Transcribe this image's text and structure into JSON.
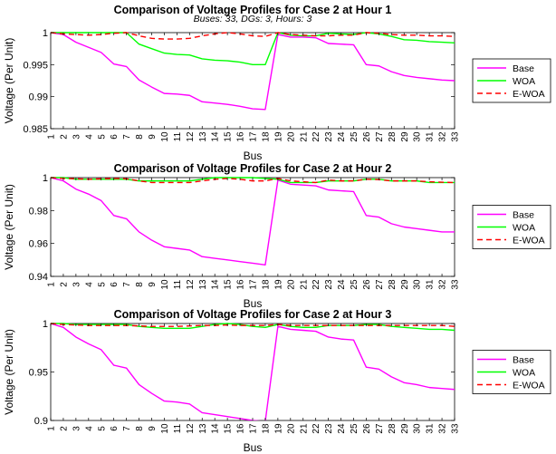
{
  "figure_subtitle": "Buses: 33, DGs: 3, Hours: 3",
  "colors": {
    "Base": "#ff00ff",
    "WOA": "#00ff00",
    "E-WOA": "#ff0000"
  },
  "chart_data": [
    {
      "type": "line",
      "title": "Comparison of Voltage Profiles for Case 2 at Hour 1",
      "xlabel": "Bus",
      "ylabel": "Voltage (Per Unit)",
      "xlim": [
        1,
        33
      ],
      "ylim": [
        0.985,
        1.0
      ],
      "yticks": [
        0.985,
        0.99,
        0.995,
        1
      ],
      "ytick_labels": [
        "0.985",
        "0.99",
        "0.995",
        "1"
      ],
      "legend": "right",
      "x": [
        1,
        2,
        3,
        4,
        5,
        6,
        7,
        8,
        9,
        10,
        11,
        12,
        13,
        14,
        15,
        16,
        17,
        18,
        19,
        20,
        21,
        22,
        23,
        24,
        25,
        26,
        27,
        28,
        29,
        30,
        31,
        32,
        33
      ],
      "series": [
        {
          "name": "Base",
          "style": "solid",
          "values": [
            1.0,
            0.9997,
            0.9985,
            0.9977,
            0.9969,
            0.9951,
            0.9947,
            0.9926,
            0.9915,
            0.9905,
            0.9904,
            0.9902,
            0.9892,
            0.989,
            0.9888,
            0.9885,
            0.9881,
            0.988,
            0.9997,
            0.9993,
            0.9993,
            0.9992,
            0.9983,
            0.9982,
            0.9981,
            0.995,
            0.9948,
            0.9939,
            0.9933,
            0.993,
            0.9928,
            0.9926,
            0.9925
          ]
        },
        {
          "name": "WOA",
          "style": "solid",
          "values": [
            1.0,
            1.0,
            1.0,
            1.0,
            1.0,
            1.0,
            1.0,
            0.9982,
            0.9975,
            0.9968,
            0.9966,
            0.9965,
            0.9959,
            0.9957,
            0.9956,
            0.9954,
            0.995,
            0.995,
            1.0,
            0.9996,
            0.9995,
            0.9995,
            0.9999,
            0.9998,
            0.9997,
            1.0,
            0.9998,
            0.9994,
            0.9989,
            0.9988,
            0.9986,
            0.9985,
            0.9984
          ]
        },
        {
          "name": "E-WOA",
          "style": "dashed",
          "values": [
            1.0,
            0.9998,
            0.9997,
            0.9996,
            0.9997,
            0.9999,
            1.0,
            0.9995,
            0.9991,
            0.999,
            0.999,
            0.9991,
            0.9995,
            0.9998,
            1.0,
            0.9998,
            0.9995,
            0.9994,
            1.0,
            0.9997,
            0.9996,
            0.9995,
            0.9995,
            0.9996,
            0.9996,
            1.0,
            0.9999,
            0.9997,
            0.9996,
            0.9996,
            0.9995,
            0.9995,
            0.9994
          ]
        }
      ]
    },
    {
      "type": "line",
      "title": "Comparison of Voltage Profiles for Case 2 at Hour 2",
      "xlabel": "Bus",
      "ylabel": "Voltage (Per Unit)",
      "xlim": [
        1,
        33
      ],
      "ylim": [
        0.94,
        1.0
      ],
      "yticks": [
        0.94,
        0.96,
        0.98,
        1
      ],
      "ytick_labels": [
        "0.94",
        "0.96",
        "0.98",
        "1"
      ],
      "legend": "right",
      "x": [
        1,
        2,
        3,
        4,
        5,
        6,
        7,
        8,
        9,
        10,
        11,
        12,
        13,
        14,
        15,
        16,
        17,
        18,
        19,
        20,
        21,
        22,
        23,
        24,
        25,
        26,
        27,
        28,
        29,
        30,
        31,
        32,
        33
      ],
      "series": [
        {
          "name": "Base",
          "style": "solid",
          "values": [
            1.0,
            0.998,
            0.993,
            0.99,
            0.986,
            0.977,
            0.975,
            0.967,
            0.962,
            0.958,
            0.957,
            0.956,
            0.952,
            0.951,
            0.95,
            0.949,
            0.948,
            0.947,
            0.9985,
            0.996,
            0.9955,
            0.995,
            0.9925,
            0.992,
            0.9915,
            0.977,
            0.976,
            0.972,
            0.97,
            0.969,
            0.968,
            0.967,
            0.967
          ]
        },
        {
          "name": "WOA",
          "style": "solid",
          "values": [
            1.0,
            1.0,
            0.999,
            0.999,
            0.999,
            0.999,
            0.999,
            0.998,
            0.998,
            0.998,
            0.998,
            0.998,
            0.999,
            1.0,
            1.0,
            1.0,
            1.0,
            0.9995,
            0.999,
            0.997,
            0.997,
            0.997,
            0.998,
            0.998,
            0.998,
            0.999,
            0.999,
            0.998,
            0.998,
            0.998,
            0.997,
            0.997,
            0.997
          ]
        },
        {
          "name": "E-WOA",
          "style": "dashed",
          "values": [
            1.0,
            0.9995,
            0.9993,
            0.999,
            0.9993,
            0.9995,
            0.9993,
            0.998,
            0.997,
            0.997,
            0.997,
            0.997,
            0.998,
            0.999,
            0.9995,
            0.999,
            0.998,
            0.998,
            0.9995,
            0.998,
            0.9975,
            0.997,
            0.9985,
            0.998,
            0.998,
            0.999,
            0.9988,
            0.998,
            0.998,
            0.998,
            0.9975,
            0.9972,
            0.997
          ]
        }
      ]
    },
    {
      "type": "line",
      "title": "Comparison of Voltage Profiles for Case 2 at Hour 3",
      "xlabel": "Bus",
      "ylabel": "Voltage (Per Unit)",
      "xlim": [
        1,
        33
      ],
      "ylim": [
        0.9,
        1.0
      ],
      "yticks": [
        0.9,
        0.95,
        1
      ],
      "ytick_labels": [
        "0.9",
        "0.95",
        "1"
      ],
      "legend": "right",
      "x": [
        1,
        2,
        3,
        4,
        5,
        6,
        7,
        8,
        9,
        10,
        11,
        12,
        13,
        14,
        15,
        16,
        17,
        18,
        19,
        20,
        21,
        22,
        23,
        24,
        25,
        26,
        27,
        28,
        29,
        30,
        31,
        32,
        33
      ],
      "series": [
        {
          "name": "Base",
          "style": "solid",
          "values": [
            1.0,
            0.996,
            0.986,
            0.979,
            0.973,
            0.957,
            0.954,
            0.937,
            0.928,
            0.92,
            0.919,
            0.917,
            0.908,
            0.906,
            0.904,
            0.902,
            0.9,
            0.899,
            0.997,
            0.994,
            0.993,
            0.992,
            0.986,
            0.984,
            0.983,
            0.955,
            0.953,
            0.945,
            0.939,
            0.937,
            0.934,
            0.933,
            0.932
          ]
        },
        {
          "name": "WOA",
          "style": "solid",
          "values": [
            1.0,
            1.0,
            0.999,
            0.999,
            0.999,
            0.999,
            0.999,
            0.997,
            0.996,
            0.995,
            0.995,
            0.995,
            0.997,
            0.999,
            1.0,
            0.999,
            0.997,
            0.996,
            0.999,
            0.997,
            0.996,
            0.996,
            0.998,
            0.998,
            0.998,
            0.999,
            0.999,
            0.997,
            0.996,
            0.995,
            0.994,
            0.994,
            0.993
          ]
        },
        {
          "name": "E-WOA",
          "style": "dashed",
          "values": [
            1.0,
            0.999,
            0.9985,
            0.998,
            0.998,
            0.998,
            0.998,
            0.9975,
            0.997,
            0.997,
            0.997,
            0.9975,
            0.998,
            0.998,
            0.9985,
            0.998,
            0.998,
            0.998,
            0.999,
            0.998,
            0.998,
            0.998,
            0.998,
            0.998,
            0.998,
            0.998,
            0.998,
            0.998,
            0.998,
            0.998,
            0.998,
            0.998,
            0.997
          ]
        }
      ]
    }
  ]
}
